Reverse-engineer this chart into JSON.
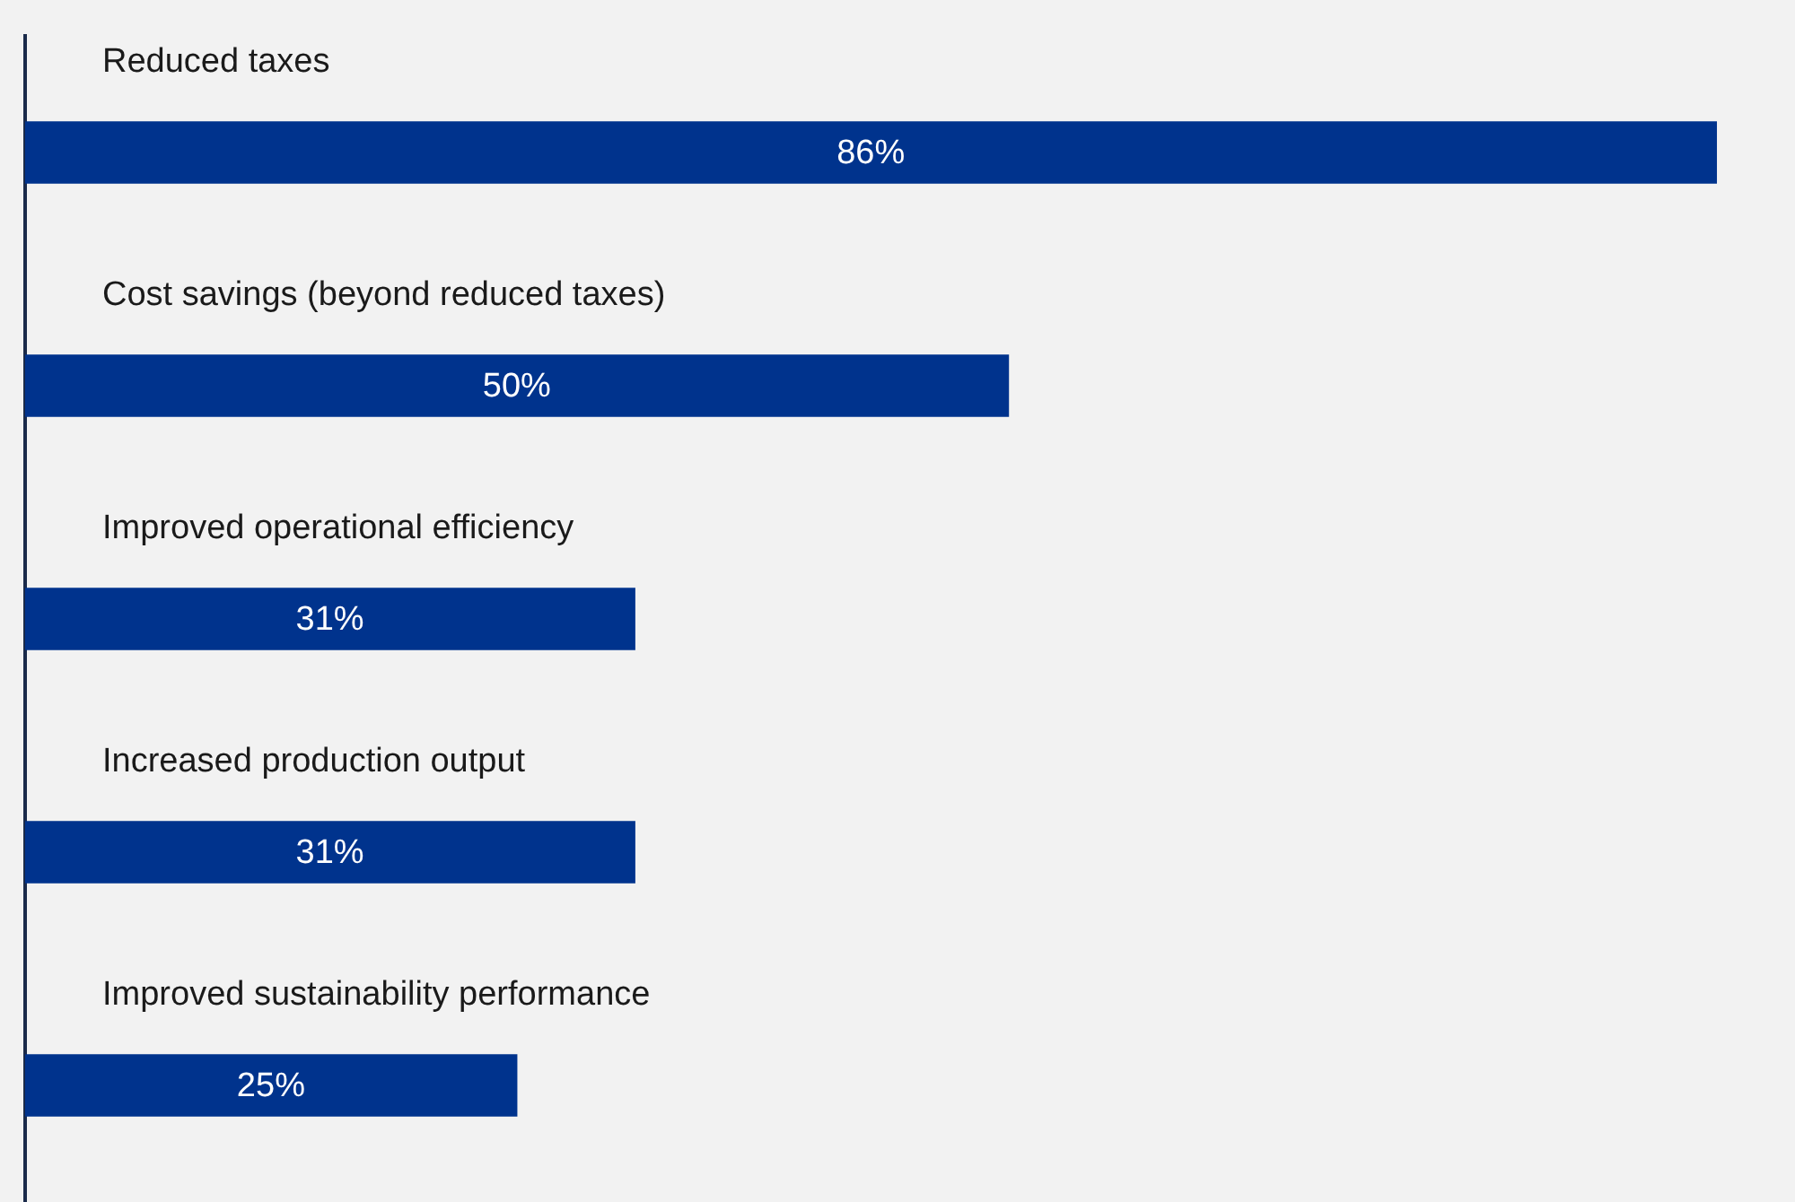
{
  "chart_data": {
    "type": "bar",
    "orientation": "horizontal",
    "categories": [
      "Reduced taxes",
      "Cost savings (beyond reduced taxes)",
      "Improved operational efficiency",
      "Increased production output",
      "Improved sustainability performance"
    ],
    "values": [
      86,
      50,
      31,
      31,
      25
    ],
    "value_labels": [
      "86%",
      "50%",
      "31%",
      "31%",
      "25%"
    ],
    "color": "#00338d",
    "tick_labels": "y",
    "grid": false,
    "legend": false
  }
}
